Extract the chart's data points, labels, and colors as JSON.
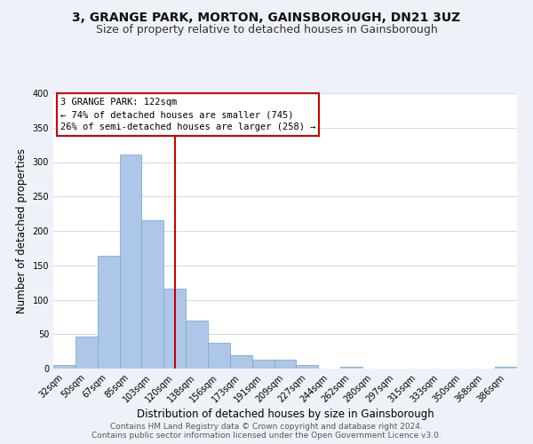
{
  "title": "3, GRANGE PARK, MORTON, GAINSBOROUGH, DN21 3UZ",
  "subtitle": "Size of property relative to detached houses in Gainsborough",
  "xlabel": "Distribution of detached houses by size in Gainsborough",
  "ylabel": "Number of detached properties",
  "bar_labels": [
    "32sqm",
    "50sqm",
    "67sqm",
    "85sqm",
    "103sqm",
    "120sqm",
    "138sqm",
    "156sqm",
    "173sqm",
    "191sqm",
    "209sqm",
    "227sqm",
    "244sqm",
    "262sqm",
    "280sqm",
    "297sqm",
    "315sqm",
    "333sqm",
    "350sqm",
    "368sqm",
    "386sqm"
  ],
  "bar_values": [
    5,
    46,
    164,
    311,
    216,
    116,
    70,
    38,
    20,
    13,
    13,
    5,
    0,
    2,
    0,
    0,
    0,
    0,
    0,
    0,
    2
  ],
  "bar_color": "#aec6e8",
  "bar_edge_color": "#7aafd4",
  "vline_x_index": 5,
  "vline_color": "#cc0000",
  "annotation_line1": "3 GRANGE PARK: 122sqm",
  "annotation_line2": "← 74% of detached houses are smaller (745)",
  "annotation_line3": "26% of semi-detached houses are larger (258) →",
  "ylim": [
    0,
    400
  ],
  "yticks": [
    0,
    50,
    100,
    150,
    200,
    250,
    300,
    350,
    400
  ],
  "footer_line1": "Contains HM Land Registry data © Crown copyright and database right 2024.",
  "footer_line2": "Contains public sector information licensed under the Open Government Licence v3.0.",
  "bg_color": "#eef2f8",
  "plot_bg_color": "#ffffff",
  "title_fontsize": 10,
  "subtitle_fontsize": 9,
  "tick_fontsize": 7,
  "label_fontsize": 8.5,
  "footer_fontsize": 6.5
}
